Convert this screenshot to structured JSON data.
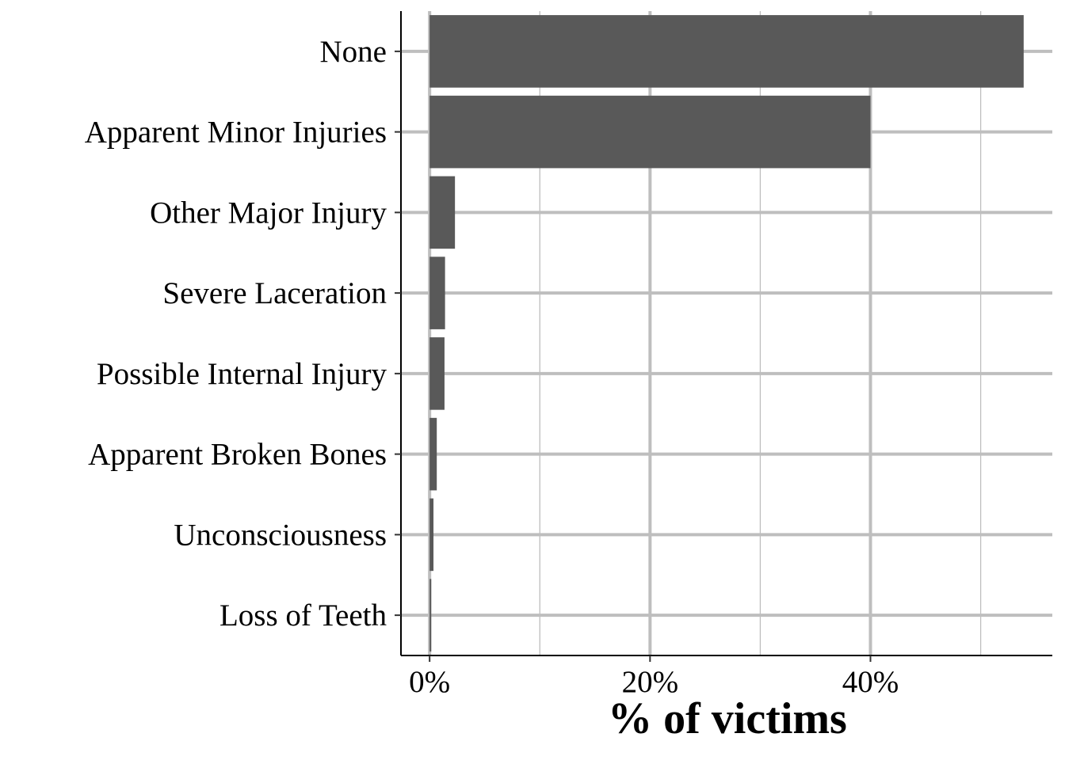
{
  "chart_data": {
    "type": "bar",
    "orientation": "horizontal",
    "categories": [
      "None",
      "Apparent Minor Injuries",
      "Other Major Injury",
      "Severe Laceration",
      "Possible Internal Injury",
      "Apparent Broken Bones",
      "Unconsciousness",
      "Loss of Teeth"
    ],
    "values": [
      53.9,
      40.0,
      2.3,
      1.4,
      1.35,
      0.65,
      0.35,
      0.15
    ],
    "xlabel": "% of victims",
    "ylabel": "",
    "xlim": [
      -2.6,
      56.5
    ],
    "x_ticks": [
      0,
      20,
      40
    ],
    "x_tick_labels": [
      "0%",
      "20%",
      "40%"
    ],
    "x_minor_ticks": [
      10,
      30,
      50
    ],
    "grid": true,
    "bar_color": "#595959",
    "grid_color": "#bebebe"
  }
}
